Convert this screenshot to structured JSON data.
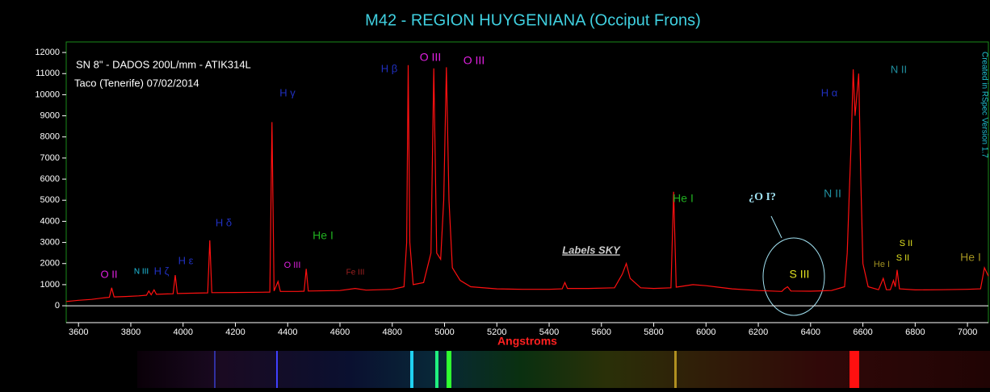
{
  "chart_data": {
    "type": "line",
    "title": "M42 - REGION HUYGENIANA (Occiput Frons)",
    "notes": [
      "SN 8\" - DADOS 200L/mm - ATIK314L",
      "Taco (Tenerife) 07/02/2014"
    ],
    "credit": "Created in RSpec Version 1.7",
    "x_label": "Angstroms",
    "sky_label": "Labels SKY",
    "question": "¿O I?",
    "color": "#ff1010",
    "xlim": [
      3553,
      7080
    ],
    "ylim": [
      -800,
      12500
    ],
    "xticks": [
      3600,
      3800,
      4000,
      4200,
      4400,
      4600,
      4800,
      5000,
      5200,
      5400,
      5600,
      5800,
      6000,
      6200,
      6400,
      6600,
      6800,
      7000
    ],
    "yticks": [
      0,
      1000,
      2000,
      3000,
      4000,
      5000,
      6000,
      7000,
      8000,
      9000,
      10000,
      11000,
      12000
    ],
    "x": [
      3553,
      3600,
      3650,
      3700,
      3718,
      3727,
      3736,
      3780,
      3830,
      3860,
      3869,
      3878,
      3889,
      3898,
      3940,
      3962,
      3970,
      3978,
      4050,
      4094,
      4102,
      4110,
      4200,
      4300,
      4332,
      4340,
      4348,
      4363,
      4372,
      4440,
      4463,
      4471,
      4479,
      4600,
      4658,
      4700,
      4800,
      4845,
      4855,
      4861,
      4867,
      4880,
      4920,
      4948,
      4959,
      4970,
      4985,
      4997,
      5007,
      5017,
      5030,
      5060,
      5100,
      5200,
      5300,
      5400,
      5450,
      5460,
      5470,
      5550,
      5650,
      5680,
      5695,
      5710,
      5750,
      5800,
      5866,
      5876,
      5886,
      5950,
      6000,
      6100,
      6200,
      6290,
      6300,
      6312,
      6325,
      6400,
      6480,
      6530,
      6540,
      6548,
      6556,
      6563,
      6570,
      6584,
      6592,
      6600,
      6620,
      6660,
      6678,
      6690,
      6705,
      6717,
      6724,
      6731,
      6740,
      6800,
      6900,
      7000,
      7050,
      7065,
      7080
    ],
    "values": [
      200,
      260,
      300,
      380,
      400,
      850,
      420,
      440,
      470,
      500,
      700,
      520,
      750,
      540,
      560,
      570,
      1450,
      580,
      600,
      610,
      3100,
      620,
      630,
      640,
      650,
      8700,
      700,
      1150,
      680,
      680,
      690,
      1750,
      700,
      720,
      820,
      740,
      780,
      900,
      3000,
      11400,
      3000,
      1000,
      1100,
      2500,
      11250,
      2500,
      2200,
      5000,
      11300,
      5000,
      1800,
      1200,
      900,
      800,
      780,
      780,
      800,
      1100,
      820,
      820,
      850,
      1500,
      2000,
      1300,
      850,
      820,
      850,
      5400,
      880,
      1000,
      950,
      800,
      720,
      680,
      800,
      900,
      700,
      690,
      720,
      900,
      2500,
      5300,
      8000,
      11200,
      9000,
      11000,
      6000,
      2000,
      900,
      760,
      1300,
      760,
      760,
      1200,
      900,
      1700,
      800,
      750,
      760,
      780,
      800,
      1800,
      1400
    ],
    "annotations": [
      {
        "text": "O II",
        "color": "#e020e0"
      },
      {
        "text": "N III",
        "color": "#20c0e0"
      },
      {
        "text": "H ζ",
        "color": "#2030c0"
      },
      {
        "text": "H ε",
        "color": "#2030c0"
      },
      {
        "text": "H δ",
        "color": "#2030c0"
      },
      {
        "text": "H γ",
        "color": "#2030c0"
      },
      {
        "text": "O III",
        "color": "#e020e0"
      },
      {
        "text": "He I",
        "color": "#20b020"
      },
      {
        "text": "Fe III",
        "color": "#a02020"
      },
      {
        "text": "H β",
        "color": "#2030c0"
      },
      {
        "text": "O III",
        "color": "#e020e0"
      },
      {
        "text": "O III",
        "color": "#e020e0"
      },
      {
        "text": "He I",
        "color": "#20b020"
      },
      {
        "text": "N II",
        "color": "#2090a0"
      },
      {
        "text": "H α",
        "color": "#2030c0"
      },
      {
        "text": "N II",
        "color": "#2090a0"
      },
      {
        "text": "He I",
        "color": "#a09020"
      },
      {
        "text": "S II",
        "color": "#e0e020"
      },
      {
        "text": "S II",
        "color": "#e0e020"
      },
      {
        "text": "He I",
        "color": "#a09020"
      },
      {
        "text": "S III",
        "color": "#e0e020"
      }
    ]
  }
}
